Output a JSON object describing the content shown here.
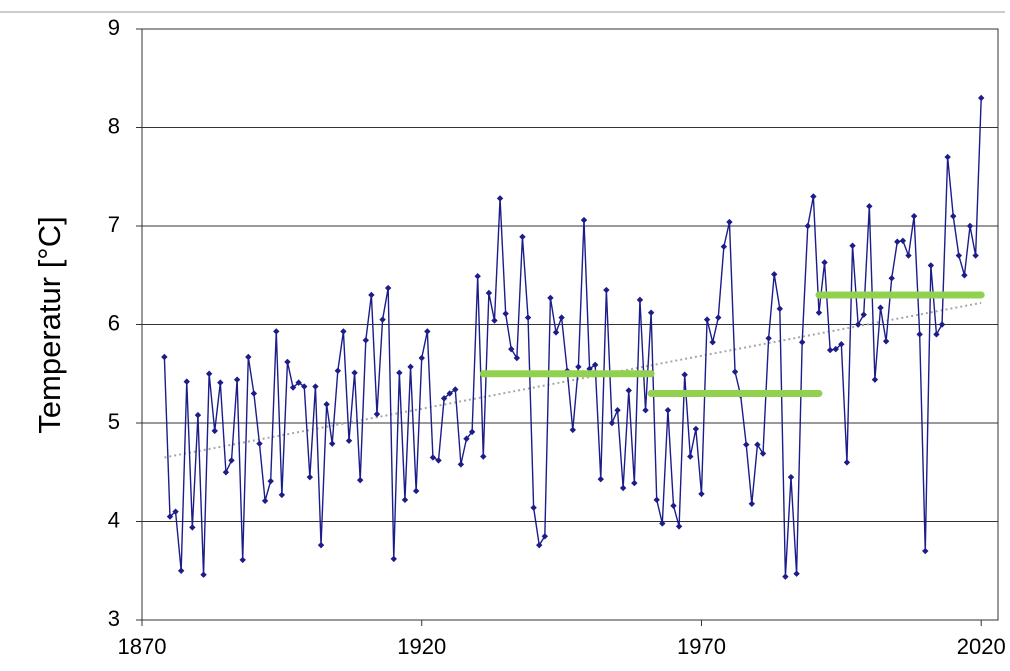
{
  "chart_data": {
    "type": "line",
    "ylabel": "Temperatur [°C]",
    "x": [
      1874,
      1875,
      1876,
      1877,
      1878,
      1879,
      1880,
      1881,
      1882,
      1883,
      1884,
      1885,
      1886,
      1887,
      1888,
      1889,
      1890,
      1891,
      1892,
      1893,
      1894,
      1895,
      1896,
      1897,
      1898,
      1899,
      1900,
      1901,
      1902,
      1903,
      1904,
      1905,
      1906,
      1907,
      1908,
      1909,
      1910,
      1911,
      1912,
      1913,
      1914,
      1915,
      1916,
      1917,
      1918,
      1919,
      1920,
      1921,
      1922,
      1923,
      1924,
      1925,
      1926,
      1927,
      1928,
      1929,
      1930,
      1931,
      1932,
      1933,
      1934,
      1935,
      1936,
      1937,
      1938,
      1939,
      1940,
      1941,
      1942,
      1943,
      1944,
      1945,
      1946,
      1947,
      1948,
      1949,
      1950,
      1951,
      1952,
      1953,
      1954,
      1955,
      1956,
      1957,
      1958,
      1959,
      1960,
      1961,
      1962,
      1963,
      1964,
      1965,
      1966,
      1967,
      1968,
      1969,
      1970,
      1971,
      1972,
      1973,
      1974,
      1975,
      1976,
      1977,
      1978,
      1979,
      1980,
      1981,
      1982,
      1983,
      1984,
      1985,
      1986,
      1987,
      1988,
      1989,
      1990,
      1991,
      1992,
      1993,
      1994,
      1995,
      1996,
      1997,
      1998,
      1999,
      2000,
      2001,
      2002,
      2003,
      2004,
      2005,
      2006,
      2007,
      2008,
      2009,
      2010,
      2011,
      2012,
      2013,
      2014,
      2015,
      2016,
      2017,
      2018,
      2019,
      2020
    ],
    "series": [
      {
        "color": "#1c1c8a",
        "values": [
          5.67,
          4.05,
          4.1,
          3.5,
          5.42,
          3.94,
          5.08,
          3.46,
          5.5,
          4.92,
          5.41,
          4.5,
          4.62,
          5.44,
          3.61,
          5.67,
          5.3,
          4.79,
          4.21,
          4.41,
          5.93,
          4.27,
          5.62,
          5.36,
          5.41,
          5.37,
          4.45,
          5.37,
          3.76,
          5.19,
          4.79,
          5.53,
          5.93,
          4.82,
          5.51,
          4.42,
          5.84,
          6.3,
          5.09,
          6.05,
          6.37,
          3.62,
          5.51,
          4.22,
          5.57,
          4.31,
          5.66,
          5.93,
          4.65,
          4.62,
          5.25,
          5.3,
          5.34,
          4.58,
          4.84,
          4.91,
          6.49,
          4.66,
          6.32,
          6.04,
          7.28,
          6.11,
          5.75,
          5.66,
          6.89,
          6.07,
          4.14,
          3.76,
          3.85,
          6.27,
          5.92,
          6.07,
          5.53,
          4.93,
          5.57,
          7.06,
          5.55,
          5.59,
          4.43,
          6.35,
          5.0,
          5.13,
          4.34,
          5.33,
          4.39,
          6.25,
          5.13,
          6.12,
          4.22,
          3.98,
          5.13,
          4.16,
          3.95,
          5.49,
          4.66,
          4.94,
          4.28,
          6.05,
          5.82,
          6.07,
          6.79,
          7.04,
          5.52,
          5.28,
          4.78,
          4.18,
          4.78,
          4.69,
          5.86,
          6.51,
          6.16,
          3.44,
          4.45,
          3.47,
          5.82,
          7.0,
          7.3,
          6.12,
          6.63,
          5.74,
          5.75,
          5.8,
          4.6,
          6.8,
          6.0,
          6.1,
          7.2,
          5.44,
          6.17,
          5.83,
          6.47,
          6.84,
          6.85,
          6.7,
          7.1,
          5.9,
          3.7,
          6.6,
          5.9,
          6.0,
          7.7,
          7.1,
          6.7,
          6.5,
          7.0,
          6.7,
          8.3
        ]
      }
    ],
    "period_means": [
      {
        "x": [
          1931,
          1961
        ],
        "value": 5.5,
        "color": "#92d050"
      },
      {
        "x": [
          1961,
          1991
        ],
        "value": 5.3,
        "color": "#92d050"
      },
      {
        "x": [
          1991,
          2020
        ],
        "value": 6.3,
        "color": "#92d050"
      }
    ],
    "trend": {
      "x": [
        1874,
        2020
      ],
      "values": [
        4.65,
        6.22
      ],
      "color": "#a6a6a6"
    },
    "xlim": [
      1870,
      2023
    ],
    "xticks": [
      1870,
      1920,
      1970,
      2020
    ],
    "ylim": [
      3,
      9
    ],
    "yticks": [
      3,
      4,
      5,
      6,
      7,
      8,
      9
    ],
    "grid": true
  }
}
